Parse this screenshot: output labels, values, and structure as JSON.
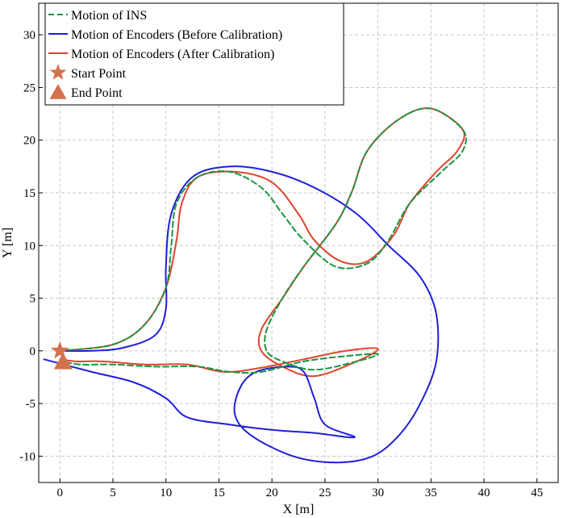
{
  "chart_data": {
    "type": "line",
    "xlabel": "X [m]",
    "ylabel": "Y [m]",
    "xlim": [
      -2,
      47
    ],
    "ylim": [
      -12.5,
      33
    ],
    "xticks": [
      0,
      5,
      10,
      15,
      20,
      25,
      30,
      35,
      40,
      45
    ],
    "yticks": [
      -10,
      -5,
      0,
      5,
      10,
      15,
      20,
      25,
      30
    ],
    "grid": true,
    "legend_position": "top-left",
    "series": [
      {
        "name": "Motion of INS",
        "color": "#1a9641",
        "style": "dashed",
        "points": [
          [
            0,
            0
          ],
          [
            5,
            0.6
          ],
          [
            8,
            2.5
          ],
          [
            10,
            6
          ],
          [
            10.5,
            10
          ],
          [
            11,
            14
          ],
          [
            13,
            16.5
          ],
          [
            16,
            17
          ],
          [
            19,
            15.5
          ],
          [
            21,
            13
          ],
          [
            23,
            10.5
          ],
          [
            26,
            8
          ],
          [
            29,
            8.3
          ],
          [
            31,
            10.5
          ],
          [
            33,
            14
          ],
          [
            36,
            17
          ],
          [
            38,
            19
          ],
          [
            38,
            21
          ],
          [
            35,
            23
          ],
          [
            32,
            22
          ],
          [
            29,
            19
          ],
          [
            27.5,
            15
          ],
          [
            26,
            12
          ],
          [
            23,
            8
          ],
          [
            21,
            5
          ],
          [
            19.5,
            2
          ],
          [
            19.5,
            0
          ],
          [
            21,
            -1
          ],
          [
            24,
            -1.8
          ],
          [
            28,
            -1
          ],
          [
            30,
            -0.3
          ],
          [
            27,
            -0.5
          ],
          [
            23,
            -1
          ],
          [
            19,
            -2
          ],
          [
            16,
            -2
          ],
          [
            13,
            -1.5
          ],
          [
            9,
            -1.5
          ],
          [
            5,
            -1.3
          ],
          [
            2,
            -1.3
          ],
          [
            0,
            -1
          ]
        ]
      },
      {
        "name": "Motion of Encoders (Before Calibration)",
        "color": "#1f1fd6",
        "style": "solid",
        "points": [
          [
            -1.5,
            -0.8
          ],
          [
            3,
            -2
          ],
          [
            7,
            -3
          ],
          [
            10,
            -4.5
          ],
          [
            12,
            -6.3
          ],
          [
            16,
            -7
          ],
          [
            20,
            -7.5
          ],
          [
            24,
            -7.8
          ],
          [
            27.8,
            -8.2
          ],
          [
            25,
            -7
          ],
          [
            24,
            -4.5
          ],
          [
            23,
            -2
          ],
          [
            21.5,
            -1.5
          ],
          [
            18.5,
            -2
          ],
          [
            17,
            -3.5
          ],
          [
            16.5,
            -6
          ],
          [
            18,
            -8
          ],
          [
            22,
            -10
          ],
          [
            26,
            -10.6
          ],
          [
            29.5,
            -10
          ],
          [
            32,
            -8
          ],
          [
            34,
            -5
          ],
          [
            35.5,
            -1
          ],
          [
            35.5,
            3.5
          ],
          [
            34,
            7
          ],
          [
            31,
            10
          ],
          [
            28,
            13
          ],
          [
            24,
            15.5
          ],
          [
            20,
            17
          ],
          [
            16,
            17.5
          ],
          [
            12.5,
            16.5
          ],
          [
            10.5,
            13
          ],
          [
            10,
            8
          ],
          [
            10,
            4
          ],
          [
            9,
            1.5
          ],
          [
            6,
            0.3
          ],
          [
            3,
            0
          ],
          [
            0,
            0
          ]
        ]
      },
      {
        "name": "Motion of Encoders (After Calibration)",
        "color": "#e0442e",
        "style": "solid",
        "points": [
          [
            0,
            0
          ],
          [
            5,
            0.6
          ],
          [
            8,
            2.5
          ],
          [
            10,
            6
          ],
          [
            11,
            10.5
          ],
          [
            11.5,
            14
          ],
          [
            13,
            16.5
          ],
          [
            16.5,
            17
          ],
          [
            20,
            16
          ],
          [
            22.5,
            13
          ],
          [
            24,
            10.5
          ],
          [
            26.5,
            8.5
          ],
          [
            29,
            8.5
          ],
          [
            31.5,
            11
          ],
          [
            33,
            14
          ],
          [
            35.5,
            17
          ],
          [
            37.5,
            19
          ],
          [
            38,
            21
          ],
          [
            35,
            23
          ],
          [
            32,
            22
          ],
          [
            29,
            19
          ],
          [
            27.5,
            15
          ],
          [
            26,
            12
          ],
          [
            23,
            8
          ],
          [
            21,
            5
          ],
          [
            19,
            2
          ],
          [
            19,
            0
          ],
          [
            21,
            -1.5
          ],
          [
            24,
            -2.4
          ],
          [
            28,
            -1
          ],
          [
            30,
            0.2
          ],
          [
            27,
            0
          ],
          [
            23,
            -0.8
          ],
          [
            19,
            -1.6
          ],
          [
            15.5,
            -2
          ],
          [
            12,
            -1.3
          ],
          [
            8,
            -1.3
          ],
          [
            4,
            -1
          ],
          [
            1.5,
            -1
          ],
          [
            0,
            -0.8
          ]
        ]
      },
      {
        "name": "Start Point",
        "color": "#d2714e",
        "marker": "star",
        "points": [
          [
            0,
            0
          ]
        ]
      },
      {
        "name": "End Point",
        "color": "#d2714e",
        "marker": "triangle",
        "points": [
          [
            0.3,
            -1.1
          ]
        ]
      }
    ]
  }
}
